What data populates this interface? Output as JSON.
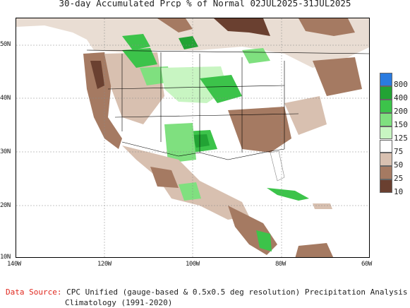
{
  "title": "30-day Accumulated Prcp % of Normal 02JUL2025-31JUL2025",
  "map": {
    "lat_labels": [
      "50N",
      "40N",
      "30N",
      "20N",
      "10N"
    ],
    "lon_labels": [
      "140W",
      "120W",
      "100W",
      "80W",
      "60W"
    ]
  },
  "legend": {
    "levels": [
      {
        "label": "800",
        "color": "#2a7be0"
      },
      {
        "label": "400",
        "color": "#22a334"
      },
      {
        "label": "200",
        "color": "#3cc34a"
      },
      {
        "label": "150",
        "color": "#7fe07f"
      },
      {
        "label": "125",
        "color": "#c8f5c2"
      },
      {
        "label": "75",
        "color": "#ffffff"
      },
      {
        "label": "50",
        "color": "#d8c0b0"
      },
      {
        "label": "25",
        "color": "#a57a62"
      },
      {
        "label": "10",
        "color": "#6a4030"
      }
    ]
  },
  "source": {
    "label": "Data Source:",
    "text": "CPC Unified (gauge-based & 0.5x0.5 deg resolution) Precipitation Analysis",
    "climatology": "Climatology (1991-2020)"
  }
}
